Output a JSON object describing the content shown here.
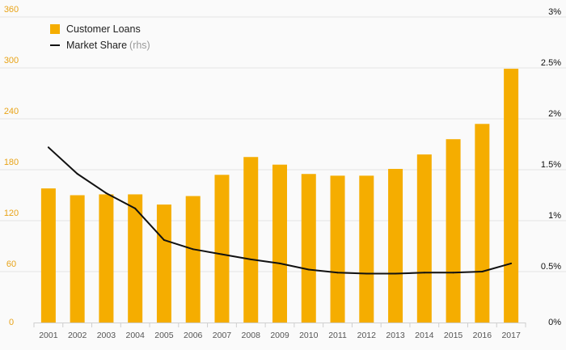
{
  "chart_data": {
    "type": "bar",
    "categories": [
      "2001",
      "2002",
      "2003",
      "2004",
      "2005",
      "2006",
      "2007",
      "2008",
      "2009",
      "2010",
      "2011",
      "2012",
      "2013",
      "2014",
      "2015",
      "2016",
      "2017"
    ],
    "series": [
      {
        "name": "Customer Loans",
        "kind": "bar",
        "axis": "left",
        "color": "#f5ad00",
        "values": [
          158,
          150,
          151,
          151,
          139,
          149,
          174,
          195,
          186,
          175,
          173,
          173,
          181,
          198,
          216,
          234,
          299
        ]
      },
      {
        "name": "Market Share",
        "legend_suffix": "(rhs)",
        "kind": "line",
        "axis": "right",
        "color": "#111111",
        "values": [
          1.72,
          1.46,
          1.27,
          1.12,
          0.81,
          0.72,
          0.67,
          0.62,
          0.58,
          0.52,
          0.49,
          0.48,
          0.48,
          0.49,
          0.49,
          0.5,
          0.58
        ]
      }
    ],
    "y_left": {
      "ylim": [
        0,
        360
      ],
      "ticks": [
        0,
        60,
        120,
        180,
        240,
        300,
        360
      ],
      "tick_labels": [
        "0",
        "60",
        "120",
        "180",
        "240",
        "300",
        "360"
      ],
      "color": "#e8a317"
    },
    "y_right": {
      "ylim": [
        0,
        3
      ],
      "ticks": [
        0,
        0.5,
        1,
        1.5,
        2,
        2.5,
        3
      ],
      "tick_labels": [
        "0%",
        "0.5%",
        "1%",
        "1.5%",
        "2%",
        "2.5%",
        "3%"
      ]
    },
    "grid": true,
    "legend_position": "top-left"
  }
}
